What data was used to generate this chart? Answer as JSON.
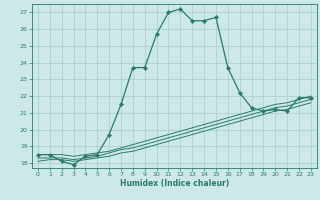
{
  "xlabel": "Humidex (Indice chaleur)",
  "bg_color": "#cce8e8",
  "grid_color": "#aacccc",
  "line_color": "#2a7a6a",
  "xlim": [
    -0.5,
    23.5
  ],
  "ylim": [
    17.7,
    27.5
  ],
  "xticks": [
    0,
    1,
    2,
    3,
    4,
    5,
    6,
    7,
    8,
    9,
    10,
    11,
    12,
    13,
    14,
    15,
    16,
    17,
    18,
    19,
    20,
    21,
    22,
    23
  ],
  "yticks": [
    18,
    19,
    20,
    21,
    22,
    23,
    24,
    25,
    26,
    27
  ],
  "series1_x": [
    0,
    1,
    2,
    3,
    4,
    5,
    6,
    7,
    8,
    9,
    10,
    11,
    12,
    13,
    14,
    15,
    16,
    17,
    18,
    19,
    20,
    21,
    22,
    23
  ],
  "series1_y": [
    18.5,
    18.5,
    18.1,
    17.9,
    18.4,
    18.5,
    19.7,
    21.5,
    23.7,
    23.7,
    25.7,
    27.0,
    27.2,
    26.5,
    26.5,
    26.7,
    23.7,
    22.2,
    21.3,
    21.1,
    21.2,
    21.1,
    21.9,
    21.9
  ],
  "series2_x": [
    0,
    1,
    2,
    3,
    4,
    5,
    6,
    7,
    8,
    9,
    10,
    11,
    12,
    13,
    14,
    15,
    16,
    17,
    18,
    19,
    20,
    21,
    22,
    23
  ],
  "series2_y": [
    18.1,
    18.2,
    18.2,
    18.1,
    18.2,
    18.3,
    18.4,
    18.6,
    18.7,
    18.9,
    19.1,
    19.3,
    19.5,
    19.7,
    19.9,
    20.1,
    20.3,
    20.5,
    20.7,
    20.9,
    21.1,
    21.2,
    21.4,
    21.6
  ],
  "series3_x": [
    0,
    1,
    2,
    3,
    4,
    5,
    6,
    7,
    8,
    9,
    10,
    11,
    12,
    13,
    14,
    15,
    16,
    17,
    18,
    19,
    20,
    21,
    22,
    23
  ],
  "series3_y": [
    18.3,
    18.3,
    18.3,
    18.2,
    18.3,
    18.4,
    18.6,
    18.8,
    18.9,
    19.1,
    19.3,
    19.5,
    19.7,
    19.9,
    20.1,
    20.3,
    20.5,
    20.7,
    20.9,
    21.1,
    21.3,
    21.4,
    21.6,
    21.8
  ],
  "series4_x": [
    0,
    1,
    2,
    3,
    4,
    5,
    6,
    7,
    8,
    9,
    10,
    11,
    12,
    13,
    14,
    15,
    16,
    17,
    18,
    19,
    20,
    21,
    22,
    23
  ],
  "series4_y": [
    18.5,
    18.5,
    18.5,
    18.4,
    18.5,
    18.6,
    18.7,
    18.9,
    19.1,
    19.3,
    19.5,
    19.7,
    19.9,
    20.1,
    20.3,
    20.5,
    20.7,
    20.9,
    21.1,
    21.3,
    21.5,
    21.6,
    21.8,
    22.0
  ]
}
